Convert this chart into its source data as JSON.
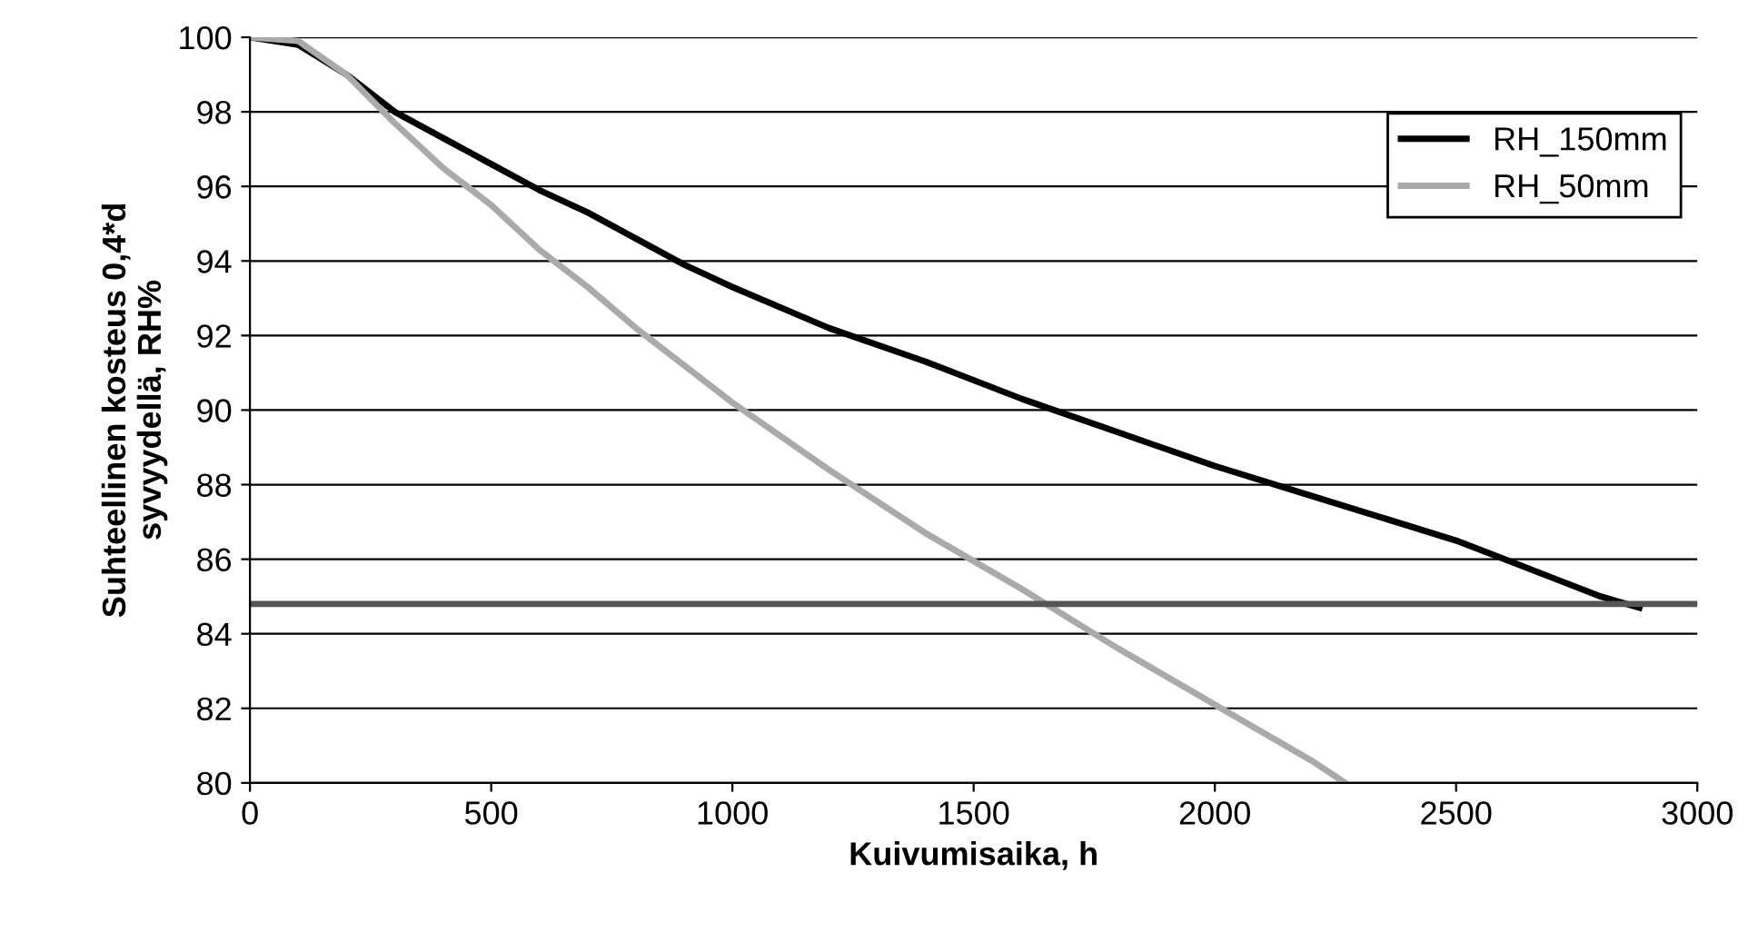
{
  "chart_data": {
    "type": "line",
    "xlabel": "Kuivumisaika, h",
    "ylabel": "Suhteellinen kosteus 0,4*d\nsyvyydellä, RH%",
    "series": [
      {
        "name": "RH_150mm",
        "color": "#000000",
        "x": [
          0,
          100,
          200,
          300,
          400,
          500,
          600,
          700,
          800,
          900,
          1000,
          1200,
          1400,
          1600,
          1800,
          2000,
          2200,
          2400,
          2500,
          2600,
          2700,
          2800,
          2880
        ],
        "values": [
          100,
          99.8,
          99,
          98,
          97.3,
          96.6,
          95.9,
          95.3,
          94.6,
          93.9,
          93.3,
          92.2,
          91.3,
          90.3,
          89.4,
          88.5,
          87.7,
          86.9,
          86.5,
          86.0,
          85.5,
          85.0,
          84.7
        ]
      },
      {
        "name": "RH_50mm",
        "color": "#aaaaaa",
        "x": [
          0,
          100,
          200,
          300,
          400,
          500,
          600,
          700,
          800,
          900,
          1000,
          1200,
          1400,
          1600,
          1800,
          2000,
          2200,
          2270
        ],
        "values": [
          100,
          99.9,
          99,
          97.7,
          96.5,
          95.5,
          94.3,
          93.3,
          92.2,
          91.2,
          90.2,
          88.4,
          86.7,
          85.2,
          83.6,
          82.1,
          80.6,
          80
        ]
      }
    ],
    "ref_lines": [
      {
        "axis": "y",
        "value": 84.8,
        "color": "#555555"
      }
    ],
    "xlim": [
      0,
      3000
    ],
    "xticks": [
      0,
      500,
      1000,
      1500,
      2000,
      2500,
      3000
    ],
    "ylim": [
      80,
      100
    ],
    "yticks": [
      80,
      82,
      84,
      86,
      88,
      90,
      92,
      94,
      96,
      98,
      100
    ],
    "grid": "y",
    "legend": "top right",
    "line_style": "solid",
    "marker": "none"
  }
}
